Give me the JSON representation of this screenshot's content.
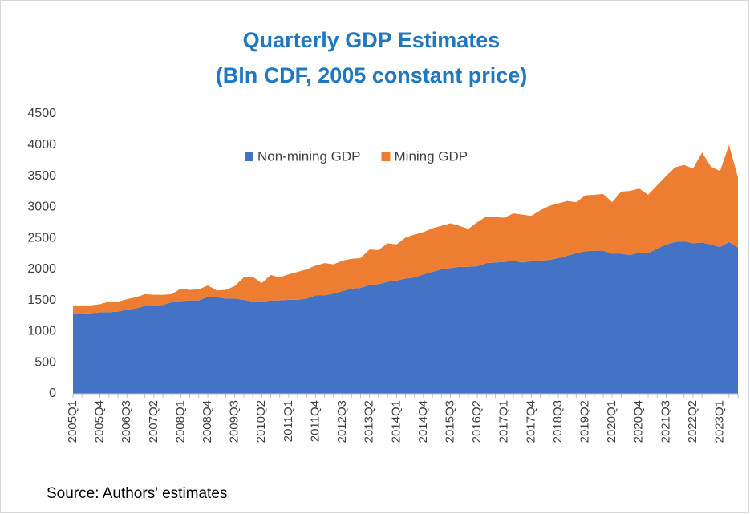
{
  "chart_data": {
    "type": "stacked_area",
    "title": "Quarterly GDP Estimates",
    "subtitle": "(Bln CDF, 2005 constant price)",
    "source": "Source: Authors' estimates",
    "categories": [
      "2005Q1",
      null,
      null,
      "2005Q4",
      null,
      null,
      "2006Q3",
      null,
      null,
      "2007Q2",
      null,
      null,
      "2008Q1",
      null,
      null,
      "2008Q4",
      null,
      null,
      "2009Q3",
      null,
      null,
      "2010Q2",
      null,
      null,
      "2011Q1",
      null,
      null,
      "2011Q4",
      null,
      null,
      "2012Q3",
      null,
      null,
      "2013Q2",
      null,
      null,
      "2014Q1",
      null,
      null,
      "2014Q4",
      null,
      null,
      "2015Q3",
      null,
      null,
      "2016Q2",
      null,
      null,
      "2017Q1",
      null,
      null,
      "2017Q4",
      null,
      null,
      "2018Q3",
      null,
      null,
      "2019Q2",
      null,
      null,
      "2020Q1",
      null,
      null,
      "2020Q4",
      null,
      null,
      "2021Q3",
      null,
      null,
      "2022Q2",
      null,
      null,
      "2023Q1",
      null,
      null
    ],
    "series": [
      {
        "name": "Non-mining GDP",
        "color": "#4472c4",
        "values": [
          1290,
          1290,
          1295,
          1310,
          1310,
          1320,
          1350,
          1370,
          1410,
          1410,
          1430,
          1470,
          1490,
          1500,
          1500,
          1560,
          1550,
          1530,
          1530,
          1510,
          1480,
          1480,
          1500,
          1500,
          1510,
          1510,
          1530,
          1580,
          1580,
          1610,
          1650,
          1690,
          1700,
          1750,
          1760,
          1800,
          1820,
          1850,
          1870,
          1920,
          1960,
          2000,
          2020,
          2040,
          2040,
          2050,
          2100,
          2110,
          2120,
          2140,
          2110,
          2130,
          2140,
          2150,
          2180,
          2220,
          2260,
          2290,
          2300,
          2300,
          2250,
          2250,
          2230,
          2270,
          2260,
          2330,
          2400,
          2440,
          2450,
          2420,
          2430,
          2400,
          2360,
          2440,
          2350
        ]
      },
      {
        "name": "Mining GDP",
        "color": "#ed7d31",
        "values": [
          130,
          130,
          125,
          130,
          170,
          160,
          170,
          180,
          190,
          180,
          160,
          130,
          200,
          170,
          180,
          180,
          110,
          140,
          200,
          360,
          400,
          300,
          410,
          370,
          410,
          450,
          470,
          480,
          520,
          470,
          490,
          480,
          480,
          570,
          550,
          620,
          580,
          660,
          690,
          680,
          700,
          700,
          720,
          660,
          610,
          710,
          750,
          730,
          710,
          760,
          770,
          730,
          810,
          870,
          880,
          880,
          820,
          900,
          900,
          910,
          830,
          1000,
          1030,
          1030,
          940,
          1020,
          1100,
          1200,
          1230,
          1200,
          1450,
          1250,
          1220,
          1560,
          1130
        ]
      }
    ],
    "ylim": [
      0,
      4500
    ],
    "yticks": [
      0,
      500,
      1000,
      1500,
      2000,
      2500,
      3000,
      3500,
      4000,
      4500
    ],
    "grid": false
  }
}
